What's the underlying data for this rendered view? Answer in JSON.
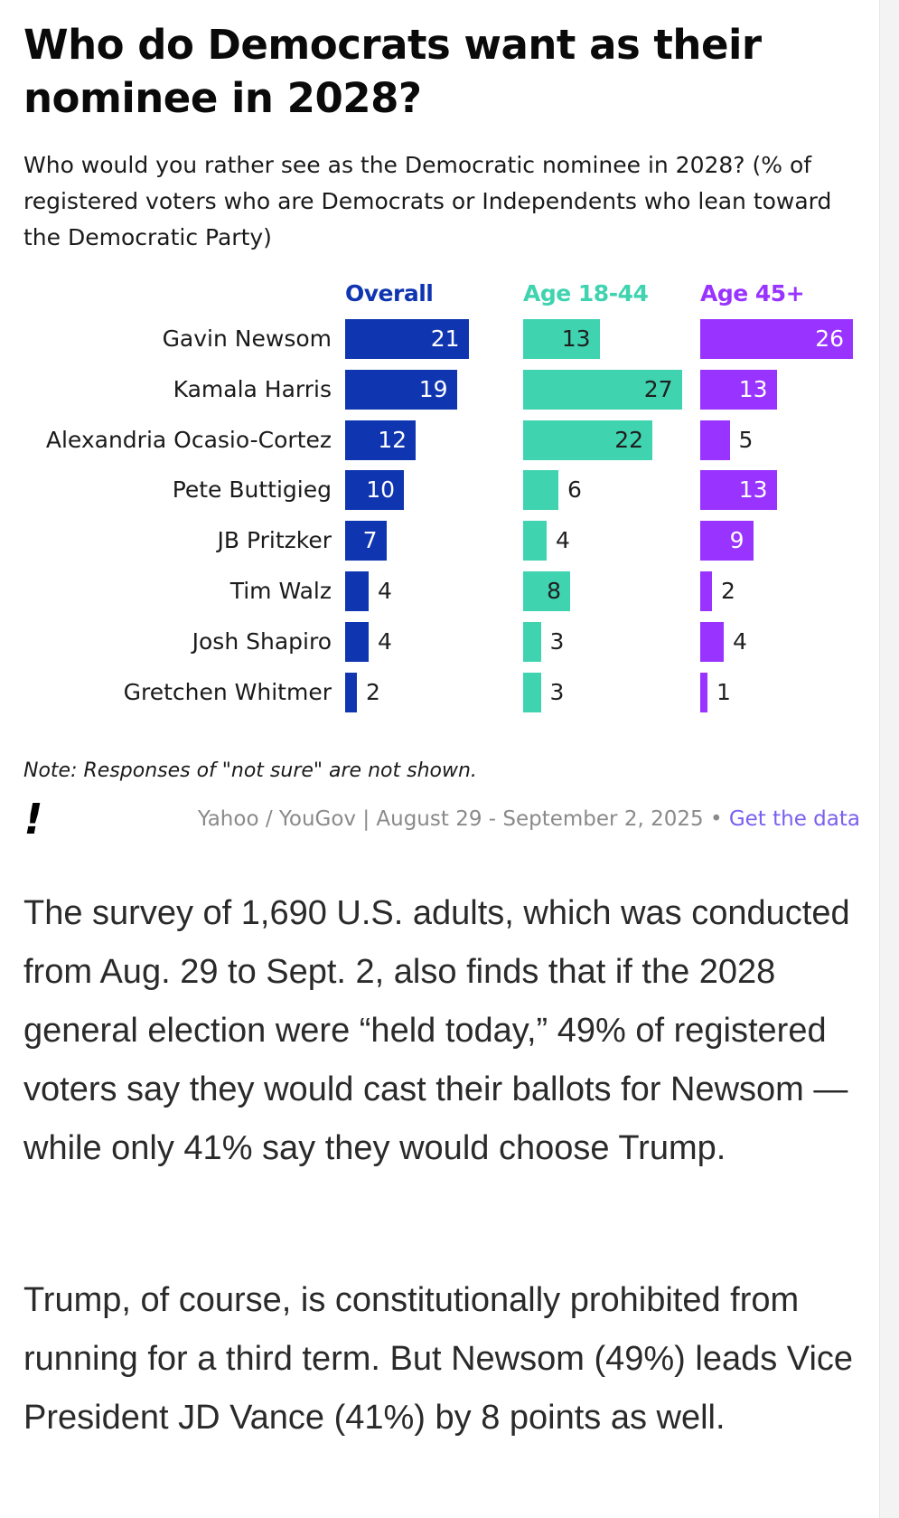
{
  "header": {
    "title": "Who do Democrats want as their nominee in 2028?",
    "subtitle": "Who would you rather see as the Democratic nominee in 2028? (% of registered voters who are Democrats or Independents who lean toward the Democratic Party)"
  },
  "colors": {
    "overall": "#0f35b0",
    "age_18_44": "#3fd3b0",
    "age_45_plus": "#9933ff"
  },
  "chart_data": {
    "type": "bar",
    "orientation": "horizontal",
    "categories": [
      "Gavin Newsom",
      "Kamala Harris",
      "Alexandria Ocasio-Cortez",
      "Pete Buttigieg",
      "JB Pritzker",
      "Tim Walz",
      "Josh Shapiro",
      "Gretchen Whitmer"
    ],
    "series": [
      {
        "name": "Overall",
        "values": [
          21,
          19,
          12,
          10,
          7,
          4,
          4,
          2
        ]
      },
      {
        "name": "Age 18-44",
        "values": [
          13,
          27,
          22,
          6,
          4,
          8,
          3,
          3
        ]
      },
      {
        "name": "Age 45+",
        "values": [
          26,
          13,
          5,
          13,
          9,
          2,
          4,
          1
        ]
      }
    ],
    "title": "Who do Democrats want as their nominee in 2028?",
    "xlabel": "",
    "ylabel": "",
    "xlim": [
      0,
      27
    ]
  },
  "footer": {
    "note": "Note: Responses of \"not sure\" are not shown.",
    "source_text": "Yahoo / YouGov | August 29 - September 2, 2025",
    "separator": "•",
    "link_label": "Get the data",
    "logo_glyph": "!"
  },
  "article": {
    "paragraphs": [
      "The survey of 1,690 U.S. adults, which was conducted from Aug. 29 to Sept. 2, also finds that if the 2028 general election were “held today,” 49% of registered voters say they would cast their ballots for Newsom — while only 41% say they would choose Trump.",
      "Trump, of course, is constitutionally prohibited from running for a third term. But Newsom (49%) leads Vice President JD Vance (41%) by 8 points as well."
    ]
  }
}
